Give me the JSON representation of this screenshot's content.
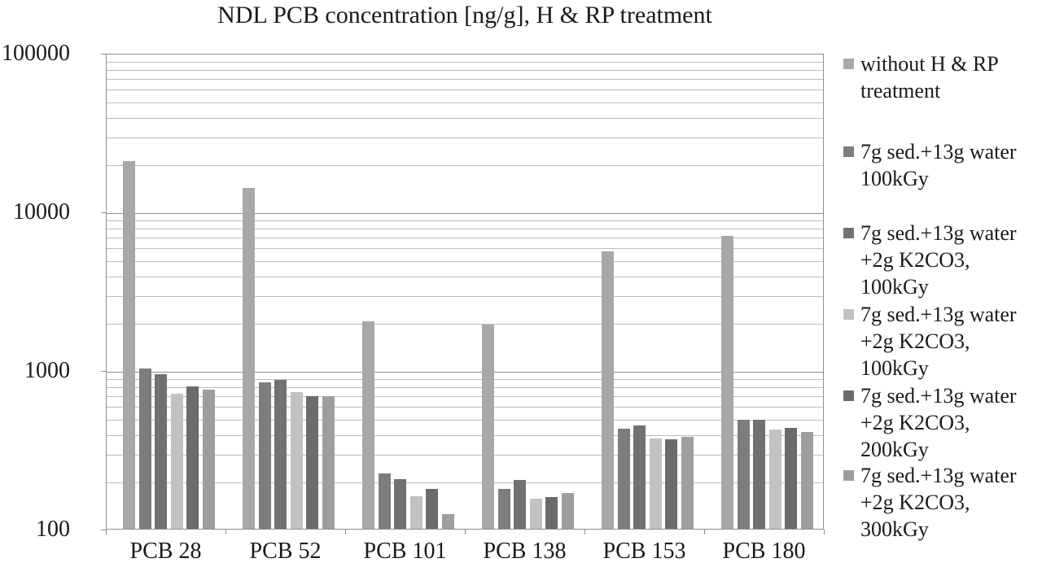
{
  "chart_data": {
    "type": "bar",
    "title": "NDL PCB concentration [ng/g], H & RP treatment",
    "categories": [
      "PCB 28",
      "PCB 52",
      "PCB 101",
      "PCB 138",
      "PCB 153",
      "PCB 180"
    ],
    "series": [
      {
        "name": "without H & RP treatment",
        "color": "#a8a8a8",
        "values": [
          21000,
          14300,
          2050,
          1950,
          5650,
          7100
        ]
      },
      {
        "name": "7g sed.+13g water 100kGy",
        "color": "#7d7d7d",
        "values": [
          1040,
          850,
          227,
          180,
          435,
          495
        ]
      },
      {
        "name": "7g sed.+13g water +2g K2CO3, 100kGy",
        "color": "#717171",
        "values": [
          950,
          880,
          207,
          205,
          455,
          490
        ]
      },
      {
        "name": "7g sed.+13g water +2g K2CO3, 100kGy",
        "color": "#c2c2c2",
        "values": [
          720,
          740,
          163,
          156,
          375,
          430
        ]
      },
      {
        "name": "7g sed.+13g water +2g K2CO3, 200kGy",
        "color": "#6b6b6b",
        "values": [
          800,
          690,
          180,
          160,
          373,
          440
        ]
      },
      {
        "name": "7g sed.+13g water +2g K2CO3, 300kGy",
        "color": "#9e9e9e",
        "values": [
          760,
          690,
          125,
          170,
          386,
          415
        ]
      }
    ],
    "y_axis": {
      "scale": "log",
      "min": 100,
      "max": 100000,
      "ticks": [
        100,
        1000,
        10000,
        100000
      ],
      "tick_labels": [
        "100",
        "1000",
        "10000",
        "100000"
      ]
    },
    "x_axis": {
      "label": ""
    },
    "legend_position": "right",
    "grid": "horizontal-log-minor-and-major"
  }
}
